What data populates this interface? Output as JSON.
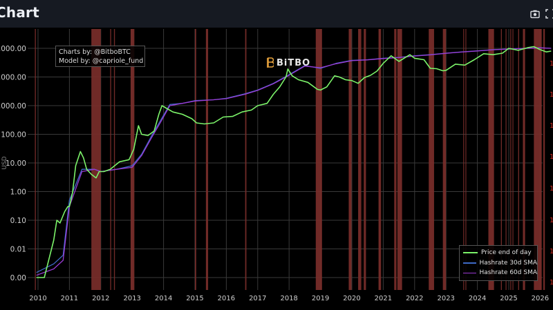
{
  "header": {
    "title": "Chart",
    "icons": [
      "camera-icon",
      "fullscreen-icon"
    ]
  },
  "credit": {
    "line1": "Charts by: @BitboBTC",
    "line2": "Model by: @capriole_fund"
  },
  "logo": {
    "text": "BiTBO",
    "color": "#e8a33d"
  },
  "colors": {
    "background": "#000000",
    "header_bg": "#161a22",
    "price": "#7cf46a",
    "price_capitulation": "#b8b865",
    "hashrate_30d": "#3e6ac8",
    "hashrate_60d": "#9b3bd6",
    "capitulation_band": "#7a2e2a",
    "grid": "#3a3a3a",
    "right_axis_label": "#d12a1f"
  },
  "legend": {
    "items": [
      {
        "label": "Price end of day",
        "color": "#7cf46a"
      },
      {
        "label": "Hashrate 30d SMA",
        "color": "#3e6ac8"
      },
      {
        "label": "Hashrate 60d SMA",
        "color": "#9b3bd6"
      }
    ]
  },
  "chart_data": {
    "type": "line",
    "title": "Chart",
    "xlabel": "",
    "ylabel": "USD",
    "y_scale": "log",
    "ylim": [
      0.001,
      100000
    ],
    "xlim": [
      2010,
      2026.4
    ],
    "grid": true,
    "legend_position": "bottom-right",
    "x_ticks": [
      "2010",
      "2011",
      "2012",
      "2013",
      "2014",
      "2015",
      "2016",
      "2017",
      "2018",
      "2019",
      "2020",
      "2021",
      "2022",
      "2023",
      "2024",
      "2025",
      "2026"
    ],
    "y_ticks_left": [
      "0,000.00",
      "0,000.00",
      "1,000.00",
      "100.00",
      "10.00",
      "1.00",
      "0.10",
      "0.01",
      "0.00"
    ],
    "y_ticks_left_values": [
      100000,
      10000,
      1000,
      100,
      10,
      1,
      0.1,
      0.01,
      0.001
    ],
    "y_ticks_right": [
      "1",
      "1",
      "1",
      "1",
      "1",
      "1",
      "1",
      "1"
    ],
    "series": [
      {
        "name": "Price end of day",
        "x": [
          2009.95,
          2010.2,
          2010.5,
          2010.6,
          2010.7,
          2010.85,
          2010.95,
          2011.0,
          2011.1,
          2011.2,
          2011.35,
          2011.45,
          2011.55,
          2011.7,
          2011.85,
          2011.95,
          2012.1,
          2012.3,
          2012.6,
          2012.9,
          2013.05,
          2013.2,
          2013.3,
          2013.5,
          2013.7,
          2013.85,
          2013.95,
          2014.1,
          2014.3,
          2014.6,
          2014.9,
          2015.05,
          2015.3,
          2015.6,
          2015.9,
          2016.2,
          2016.5,
          2016.8,
          2017.0,
          2017.3,
          2017.5,
          2017.7,
          2017.9,
          2017.96,
          2018.1,
          2018.3,
          2018.6,
          2018.9,
          2019.0,
          2019.2,
          2019.45,
          2019.6,
          2019.8,
          2020.0,
          2020.2,
          2020.4,
          2020.6,
          2020.8,
          2021.0,
          2021.25,
          2021.5,
          2021.85,
          2022.0,
          2022.3,
          2022.5,
          2022.7,
          2022.9,
          2023.0,
          2023.3,
          2023.6,
          2023.9,
          2024.2,
          2024.5,
          2024.8,
          2025.0,
          2025.3,
          2025.6,
          2025.8,
          2026.0,
          2026.2,
          2026.35
        ],
        "values": [
          0.001,
          0.001,
          0.02,
          0.1,
          0.08,
          0.2,
          0.3,
          0.3,
          0.9,
          8,
          25,
          15,
          6,
          4,
          3,
          5,
          5,
          6,
          11,
          13,
          30,
          200,
          100,
          90,
          130,
          500,
          1000,
          800,
          600,
          500,
          350,
          250,
          230,
          250,
          400,
          420,
          600,
          700,
          1000,
          1200,
          2500,
          4500,
          10000,
          19000,
          11000,
          8000,
          6500,
          3700,
          3500,
          4500,
          11000,
          10000,
          8000,
          7500,
          6000,
          9500,
          11500,
          16000,
          30000,
          55000,
          35000,
          60000,
          45000,
          40000,
          20000,
          19500,
          16500,
          17000,
          28000,
          26000,
          40000,
          65000,
          60000,
          68000,
          100000,
          85000,
          105000,
          115000,
          90000,
          75000,
          80000
        ]
      },
      {
        "name": "Hashrate 30d SMA",
        "x": [
          2009.95,
          2010.5,
          2010.8,
          2011.0,
          2011.4,
          2011.8,
          2012.0,
          2012.5,
          2013.0,
          2013.3,
          2013.6,
          2013.9,
          2014.2,
          2014.6,
          2015.0,
          2015.6,
          2016.0,
          2016.6,
          2017.0,
          2017.5,
          2018.0,
          2018.5,
          2019.0,
          2019.5,
          2020.0,
          2020.5,
          2021.0,
          2021.5,
          2022.0,
          2022.5,
          2023.0,
          2023.5,
          2024.0,
          2024.5,
          2025.0,
          2025.5,
          2026.0,
          2026.35
        ],
        "values": [
          0.0015,
          0.003,
          0.006,
          0.5,
          6,
          6,
          5,
          6,
          8,
          20,
          80,
          300,
          1100,
          1200,
          1500,
          1600,
          1800,
          2600,
          3500,
          6000,
          12000,
          25000,
          20000,
          30000,
          38000,
          40000,
          45000,
          48000,
          55000,
          60000,
          68000,
          75000,
          82000,
          90000,
          95000,
          100000,
          105000,
          100000
        ]
      },
      {
        "name": "Hashrate 60d SMA",
        "x": [
          2009.95,
          2010.5,
          2010.8,
          2011.0,
          2011.4,
          2011.8,
          2012.0,
          2012.5,
          2013.0,
          2013.3,
          2013.6,
          2013.9,
          2014.2,
          2014.6,
          2015.0,
          2015.6,
          2016.0,
          2016.6,
          2017.0,
          2017.5,
          2018.0,
          2018.5,
          2019.0,
          2019.5,
          2020.0,
          2020.5,
          2021.0,
          2021.5,
          2022.0,
          2022.5,
          2023.0,
          2023.5,
          2024.0,
          2024.5,
          2025.0,
          2025.5,
          2026.0,
          2026.35
        ],
        "values": [
          0.0012,
          0.002,
          0.004,
          0.3,
          5,
          6,
          5,
          6,
          7,
          18,
          70,
          260,
          1000,
          1200,
          1450,
          1600,
          1750,
          2500,
          3400,
          5800,
          11500,
          24000,
          21000,
          29000,
          37000,
          39500,
          44000,
          47500,
          54000,
          59000,
          67000,
          74000,
          81000,
          89000,
          94000,
          99000,
          104000,
          100000
        ]
      }
    ],
    "capitulation_bands": [
      [
        2009.9,
        2009.93
      ],
      [
        2011.7,
        2012.0
      ],
      [
        2012.3,
        2012.33
      ],
      [
        2012.42,
        2012.45
      ],
      [
        2012.95,
        2013.07
      ],
      [
        2015.0,
        2015.04
      ],
      [
        2015.35,
        2015.42
      ],
      [
        2016.6,
        2016.64
      ],
      [
        2018.85,
        2019.05
      ],
      [
        2019.9,
        2019.99
      ],
      [
        2020.2,
        2020.3
      ],
      [
        2020.38,
        2020.45
      ],
      [
        2020.85,
        2020.93
      ],
      [
        2021.35,
        2021.42
      ],
      [
        2021.45,
        2021.6
      ],
      [
        2022.45,
        2022.62
      ],
      [
        2022.9,
        2023.0
      ],
      [
        2023.55,
        2023.57
      ],
      [
        2023.62,
        2023.64
      ],
      [
        2024.35,
        2024.53
      ],
      [
        2024.75,
        2024.78
      ],
      [
        2024.9,
        2024.92
      ],
      [
        2025.05,
        2025.07
      ],
      [
        2025.12,
        2025.14
      ],
      [
        2025.3,
        2025.33
      ],
      [
        2025.45,
        2025.52
      ],
      [
        2025.8,
        2026.05
      ],
      [
        2026.1,
        2026.15
      ]
    ],
    "annotations": [
      "Charts by: @BitboBTC",
      "Model by: @capriole_fund",
      "BiTBO"
    ]
  }
}
